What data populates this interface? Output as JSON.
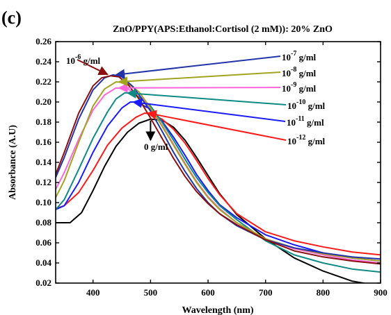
{
  "panel_label": "(c)",
  "chart_data": {
    "type": "line",
    "title": "ZnO/PPY(APS:Ethanol:Cortisol (2 mM)): 20% ZnO",
    "xlabel": "Wavelength (nm)",
    "ylabel": "Absorbance (A.U)",
    "xlim": [
      335,
      900
    ],
    "ylim": [
      0.02,
      0.26
    ],
    "xticks": [
      400,
      500,
      600,
      700,
      800,
      900
    ],
    "yticks": [
      0.02,
      0.04,
      0.06,
      0.08,
      0.1,
      0.12,
      0.14,
      0.16,
      0.18,
      0.2,
      0.22,
      0.24,
      0.26
    ],
    "grid": false,
    "legend": "none",
    "series": [
      {
        "label_base": "0 g/ml",
        "label_exp": "",
        "label_suffix": "",
        "color": "#000000",
        "x": [
          335,
          360,
          380,
          400,
          420,
          440,
          460,
          480,
          500,
          520,
          540,
          560,
          580,
          600,
          620,
          650,
          700,
          750,
          800,
          850,
          870,
          900
        ],
        "y": [
          0.08,
          0.08,
          0.09,
          0.112,
          0.136,
          0.156,
          0.17,
          0.179,
          0.183,
          0.182,
          0.175,
          0.162,
          0.145,
          0.127,
          0.109,
          0.088,
          0.064,
          0.045,
          0.032,
          0.022,
          0.02,
          0.016
        ]
      },
      {
        "label_base": "10",
        "label_exp": "-12",
        "label_suffix": " g/ml",
        "color": "#ff1a1a",
        "x": [
          335,
          350,
          375,
          400,
          425,
          450,
          475,
          490,
          500,
          520,
          540,
          560,
          580,
          600,
          620,
          650,
          700,
          750,
          800,
          850,
          900
        ],
        "y": [
          0.094,
          0.097,
          0.11,
          0.132,
          0.157,
          0.174,
          0.185,
          0.189,
          0.188,
          0.183,
          0.173,
          0.159,
          0.142,
          0.124,
          0.108,
          0.089,
          0.071,
          0.062,
          0.056,
          0.051,
          0.048
        ]
      },
      {
        "label_base": "10",
        "label_exp": "-11",
        "label_suffix": " g/ml",
        "color": "#1a1aff",
        "x": [
          335,
          350,
          375,
          400,
          425,
          450,
          465,
          475,
          500,
          520,
          540,
          560,
          580,
          600,
          620,
          650,
          700,
          750,
          800,
          850,
          900
        ],
        "y": [
          0.093,
          0.097,
          0.12,
          0.15,
          0.176,
          0.194,
          0.2,
          0.2,
          0.193,
          0.181,
          0.165,
          0.147,
          0.128,
          0.112,
          0.098,
          0.085,
          0.068,
          0.058,
          0.05,
          0.045,
          0.042
        ]
      },
      {
        "label_base": "10",
        "label_exp": "-10",
        "label_suffix": " g/ml",
        "color": "#0e8a85",
        "x": [
          335,
          350,
          375,
          400,
          425,
          440,
          455,
          470,
          500,
          520,
          540,
          560,
          580,
          600,
          620,
          650,
          700,
          750,
          800,
          850,
          900
        ],
        "y": [
          0.093,
          0.103,
          0.133,
          0.164,
          0.19,
          0.203,
          0.209,
          0.209,
          0.196,
          0.18,
          0.162,
          0.143,
          0.125,
          0.11,
          0.097,
          0.083,
          0.062,
          0.048,
          0.04,
          0.034,
          0.031
        ]
      },
      {
        "label_base": "10",
        "label_exp": "-9",
        "label_suffix": " g/ml",
        "color": "#ff66d9",
        "x": [
          335,
          350,
          375,
          400,
          420,
          440,
          460,
          480,
          500,
          520,
          540,
          560,
          580,
          600,
          620,
          650,
          700,
          750,
          800,
          850,
          900
        ],
        "y": [
          0.113,
          0.13,
          0.163,
          0.192,
          0.207,
          0.214,
          0.213,
          0.207,
          0.194,
          0.177,
          0.158,
          0.139,
          0.121,
          0.106,
          0.094,
          0.08,
          0.064,
          0.054,
          0.048,
          0.043,
          0.04
        ]
      },
      {
        "label_base": "10",
        "label_exp": "-8",
        "label_suffix": " g/ml",
        "color": "#a3a322",
        "x": [
          335,
          350,
          375,
          400,
          420,
          440,
          460,
          480,
          500,
          520,
          540,
          560,
          580,
          600,
          620,
          650,
          700,
          750,
          800,
          850,
          900
        ],
        "y": [
          0.105,
          0.122,
          0.16,
          0.196,
          0.213,
          0.22,
          0.219,
          0.21,
          0.194,
          0.176,
          0.157,
          0.138,
          0.12,
          0.105,
          0.093,
          0.08,
          0.064,
          0.055,
          0.049,
          0.045,
          0.042
        ]
      },
      {
        "label_base": "10",
        "label_exp": "-7",
        "label_suffix": " g/ml",
        "color": "#2233aa",
        "x": [
          335,
          350,
          375,
          400,
          420,
          435,
          450,
          470,
          500,
          520,
          540,
          560,
          580,
          600,
          620,
          650,
          700,
          750,
          800,
          850,
          900
        ],
        "y": [
          0.125,
          0.145,
          0.183,
          0.212,
          0.224,
          0.227,
          0.225,
          0.215,
          0.191,
          0.171,
          0.15,
          0.131,
          0.114,
          0.1,
          0.089,
          0.077,
          0.063,
          0.055,
          0.05,
          0.046,
          0.044
        ]
      },
      {
        "label_base": "10",
        "label_exp": "-6",
        "label_suffix": " g/ml",
        "color": "#8b0f0f",
        "x": [
          335,
          350,
          375,
          400,
          415,
          430,
          445,
          460,
          480,
          500,
          520,
          540,
          560,
          580,
          600,
          620,
          650,
          700,
          750,
          800,
          850,
          900
        ],
        "y": [
          0.128,
          0.15,
          0.189,
          0.216,
          0.224,
          0.226,
          0.225,
          0.218,
          0.203,
          0.184,
          0.164,
          0.144,
          0.126,
          0.111,
          0.099,
          0.089,
          0.078,
          0.063,
          0.052,
          0.046,
          0.042,
          0.039
        ]
      }
    ]
  }
}
